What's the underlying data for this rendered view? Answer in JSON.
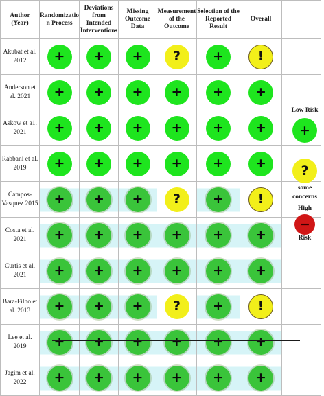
{
  "headers": [
    "Author (Year)",
    "Randomizatio n Process",
    "Deviations from Intended Interventions",
    "Missing Outcome Data",
    "Measurement of the Outcome",
    "Selection of the Reported Result",
    "Overall"
  ],
  "studies": [
    {
      "author": "Akubat et al. 2012",
      "ratings": [
        "low",
        "low",
        "low",
        "some",
        "low",
        "some"
      ]
    },
    {
      "author": "Anderson et al. 2021",
      "ratings": [
        "low",
        "low",
        "low",
        "low",
        "low",
        "low"
      ]
    },
    {
      "author": "Askow et a1. 2021",
      "ratings": [
        "low",
        "low",
        "low",
        "low",
        "low",
        "low"
      ]
    },
    {
      "author": "Rabbani et al. 2019",
      "ratings": [
        "low",
        "low",
        "low",
        "low",
        "low",
        "low"
      ]
    },
    {
      "author": "Campos-Vasquez 2015",
      "ratings": [
        "low",
        "low",
        "low",
        "some",
        "low",
        "some"
      ]
    },
    {
      "author": "Costa et al. 2021",
      "ratings": [
        "low",
        "low",
        "low",
        "low",
        "low",
        "low"
      ]
    },
    {
      "author": "Curtis et al. 2021",
      "ratings": [
        "low",
        "low",
        "low",
        "low",
        "low",
        "low"
      ]
    },
    {
      "author": "Bara-Filho et al. 2013",
      "ratings": [
        "low",
        "low",
        "low",
        "some",
        "low",
        "some"
      ]
    },
    {
      "author": "Lee et al. 2019",
      "ratings": [
        "low",
        "low",
        "low",
        "low",
        "low",
        "low"
      ]
    },
    {
      "author": "Jagim et al. 2022",
      "ratings": [
        "low",
        "low",
        "low",
        "low",
        "low",
        "low"
      ]
    }
  ],
  "symbols": {
    "low": "+",
    "some_domain": "?",
    "some_overall": "!",
    "high": "−"
  },
  "legend": {
    "low_label": "Low Risk",
    "some_label": "some concerns",
    "high_label_top": "High",
    "high_label_bottom": "Risk"
  },
  "colors": {
    "low": "#1ee51e",
    "some": "#f2ef1a",
    "high": "#d01616"
  }
}
